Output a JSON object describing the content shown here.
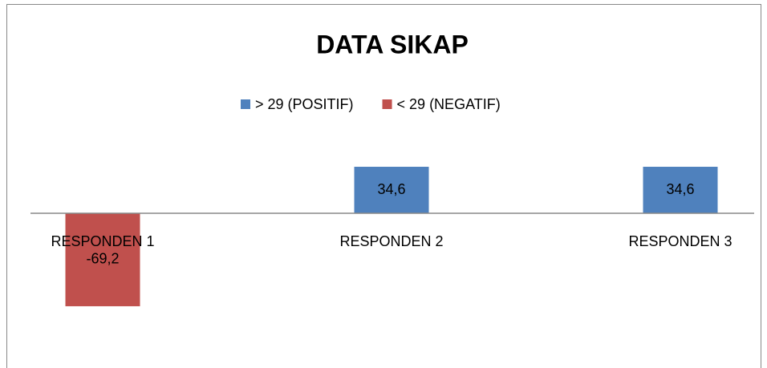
{
  "chart_data": {
    "type": "bar",
    "title": "DATA SIKAP",
    "categories": [
      "RESPONDEN 1",
      "RESPONDEN 2",
      "RESPONDEN 3"
    ],
    "series": [
      {
        "name": "> 29 (POSITIF)",
        "color": "#4f81bd",
        "values": [
          null,
          34.6,
          34.6
        ],
        "value_labels": [
          null,
          "34,6",
          "34,6"
        ]
      },
      {
        "name": "< 29 (NEGATIF)",
        "color": "#c0504d",
        "values": [
          -69.2,
          null,
          null
        ],
        "value_labels": [
          "-69,2",
          null,
          null
        ]
      }
    ],
    "ylim": [
      -100,
      60
    ],
    "legend": "top"
  }
}
